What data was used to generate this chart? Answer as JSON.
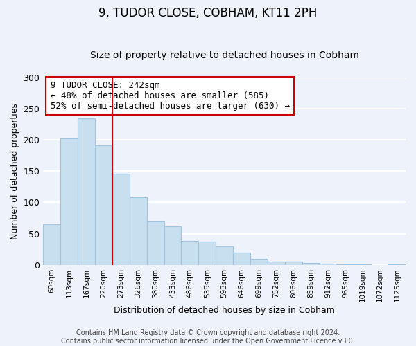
{
  "title": "9, TUDOR CLOSE, COBHAM, KT11 2PH",
  "subtitle": "Size of property relative to detached houses in Cobham",
  "xlabel": "Distribution of detached houses by size in Cobham",
  "ylabel": "Number of detached properties",
  "categories": [
    "60sqm",
    "113sqm",
    "167sqm",
    "220sqm",
    "273sqm",
    "326sqm",
    "380sqm",
    "433sqm",
    "486sqm",
    "539sqm",
    "593sqm",
    "646sqm",
    "699sqm",
    "752sqm",
    "806sqm",
    "859sqm",
    "912sqm",
    "965sqm",
    "1019sqm",
    "1072sqm",
    "1125sqm"
  ],
  "values": [
    65,
    202,
    234,
    191,
    146,
    108,
    70,
    62,
    39,
    37,
    30,
    20,
    10,
    5,
    5,
    3,
    2,
    1,
    1,
    0,
    1
  ],
  "bar_color": "#c8dff0",
  "bar_edge_color": "#a0c4e0",
  "vline_x_index": 3.5,
  "vline_color": "#cc0000",
  "annotation_text": "9 TUDOR CLOSE: 242sqm\n← 48% of detached houses are smaller (585)\n52% of semi-detached houses are larger (630) →",
  "annotation_box_color": "white",
  "annotation_box_edge_color": "#cc0000",
  "ylim": [
    0,
    300
  ],
  "yticks": [
    0,
    50,
    100,
    150,
    200,
    250,
    300
  ],
  "footer_line1": "Contains HM Land Registry data © Crown copyright and database right 2024.",
  "footer_line2": "Contains public sector information licensed under the Open Government Licence v3.0.",
  "background_color": "#eef2fa",
  "grid_color": "white",
  "title_fontsize": 12,
  "subtitle_fontsize": 10,
  "annotation_fontsize": 9,
  "footer_fontsize": 7
}
